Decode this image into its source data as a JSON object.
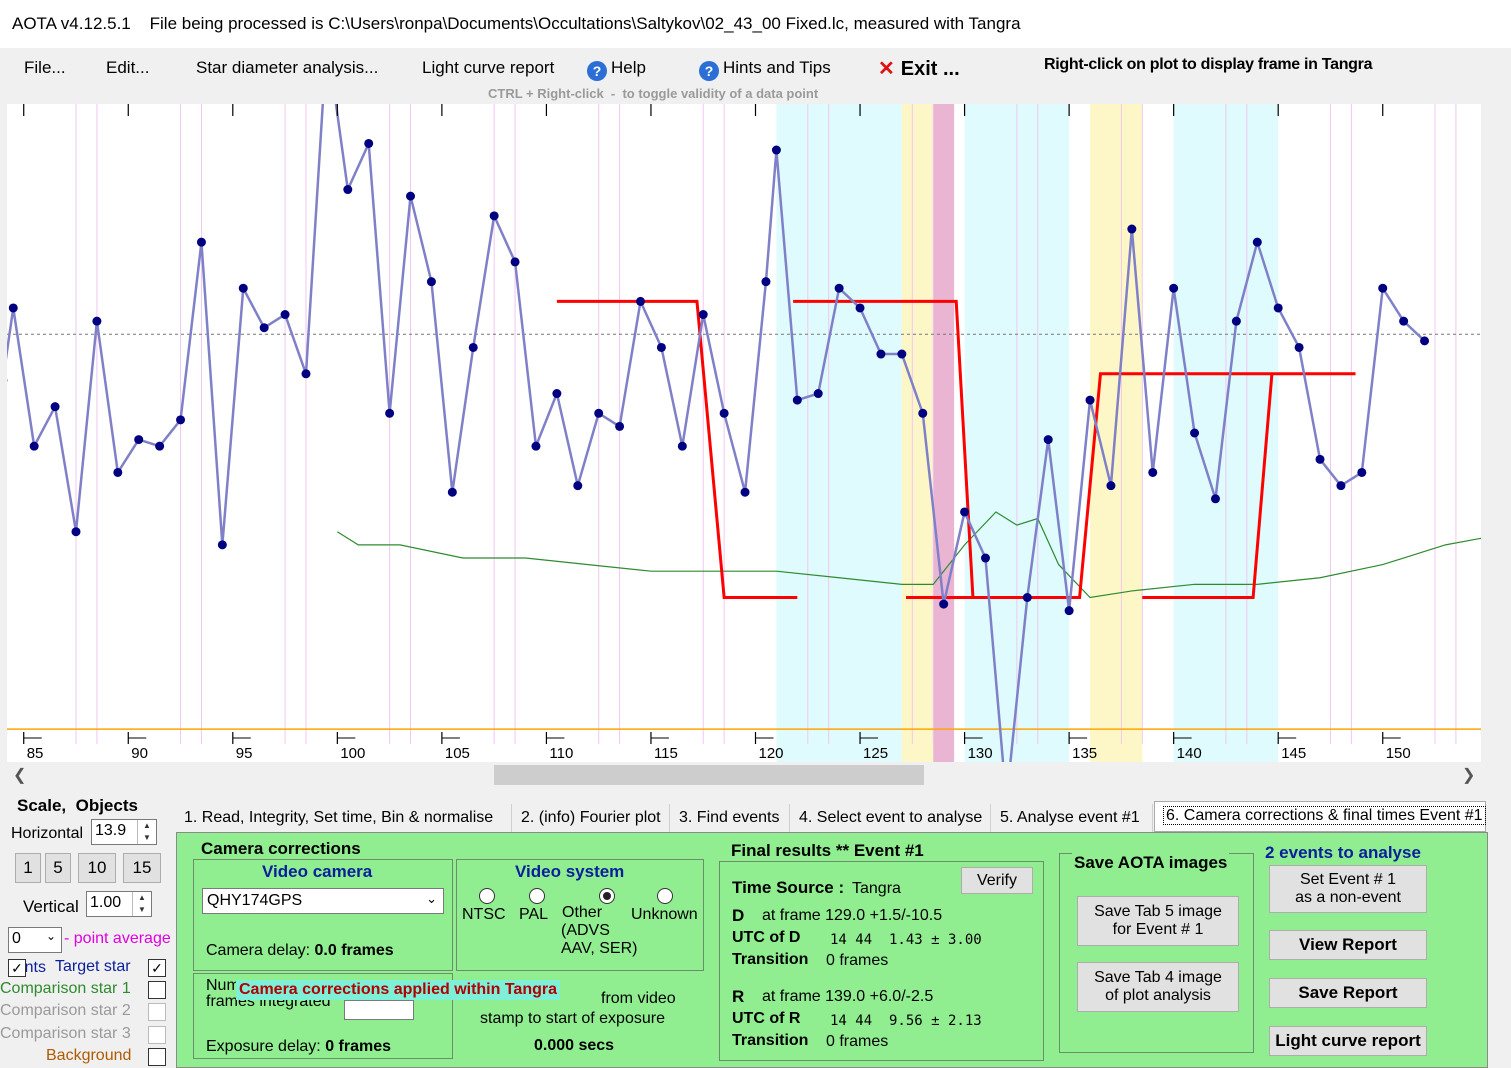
{
  "title": "AOTA v4.12.5.1    File being processed is C:\\Users\\ronpa\\Documents\\Occultations\\Saltykov\\02_43_00 Fixed.lc, measured with Tangra",
  "menu": {
    "file": "File...",
    "edit": "Edit...",
    "star_diameter": "Star diameter analysis...",
    "lc_report": "Light curve report",
    "help": "Help",
    "hints": "Hints and Tips",
    "exit": "Exit ...",
    "right_click_hint": "Right-click on plot to display frame in Tangra",
    "ctrl_hint": "CTRL + Right-click  -  to toggle validity of a data point"
  },
  "colors": {
    "curve": "#8080c8",
    "points": "#000080",
    "model": "#ff0000",
    "comparison": "#2e8b2e",
    "baseline": "#ffa500",
    "band_cyan": "#dffbfd",
    "band_yellow": "#fdf7c8",
    "band_pink": "#eab4d3",
    "panel_green": "#90ee90"
  },
  "chart_data": {
    "type": "line",
    "x_range": [
      84.2,
      154.7
    ],
    "ticks": [
      "85",
      "90",
      "95",
      "100",
      "105",
      "110",
      "115",
      "120",
      "125",
      "130",
      "135",
      "140",
      "145",
      "150"
    ],
    "tick_values": [
      85,
      90,
      95,
      100,
      105,
      110,
      115,
      120,
      125,
      130,
      135,
      140,
      145,
      150
    ],
    "target_star": [
      [
        84,
        0.42
      ],
      [
        84.5,
        0.31
      ],
      [
        85.5,
        0.52
      ],
      [
        86.5,
        0.46
      ],
      [
        87.5,
        0.65
      ],
      [
        88.5,
        0.33
      ],
      [
        89.5,
        0.56
      ],
      [
        90.5,
        0.51
      ],
      [
        91.5,
        0.52
      ],
      [
        92.5,
        0.48
      ],
      [
        93.5,
        0.21
      ],
      [
        94.5,
        0.67
      ],
      [
        95.5,
        0.28
      ],
      [
        96.5,
        0.34
      ],
      [
        97.5,
        0.32
      ],
      [
        98.5,
        0.41
      ],
      [
        99.5,
        -0.1
      ],
      [
        100.5,
        0.13
      ],
      [
        101.5,
        0.06
      ],
      [
        102.5,
        0.47
      ],
      [
        103.5,
        0.14
      ],
      [
        104.5,
        0.27
      ],
      [
        105.5,
        0.59
      ],
      [
        106.5,
        0.37
      ],
      [
        107.5,
        0.17
      ],
      [
        108.5,
        0.24
      ],
      [
        109.5,
        0.52
      ],
      [
        110.5,
        0.44
      ],
      [
        111.5,
        0.58
      ],
      [
        112.5,
        0.47
      ],
      [
        113.5,
        0.49
      ],
      [
        114.5,
        0.3
      ],
      [
        115.5,
        0.37
      ],
      [
        116.5,
        0.52
      ],
      [
        117.5,
        0.32
      ],
      [
        118.5,
        0.47
      ],
      [
        119.5,
        0.59
      ],
      [
        120.5,
        0.27
      ],
      [
        121,
        0.07
      ],
      [
        122,
        0.45
      ],
      [
        123,
        0.44
      ],
      [
        124,
        0.28
      ],
      [
        125,
        0.31
      ],
      [
        126,
        0.38
      ],
      [
        127,
        0.38
      ],
      [
        128,
        0.47
      ],
      [
        129,
        0.76
      ],
      [
        130,
        0.62
      ],
      [
        131,
        0.69
      ],
      [
        132,
        1.06
      ],
      [
        133,
        0.75
      ],
      [
        134,
        0.51
      ],
      [
        135,
        0.77
      ],
      [
        136,
        0.45
      ],
      [
        137,
        0.58
      ],
      [
        138,
        0.19
      ],
      [
        139,
        0.56
      ],
      [
        140,
        0.28
      ],
      [
        141,
        0.5
      ],
      [
        142,
        0.6
      ],
      [
        143,
        0.33
      ],
      [
        144,
        0.21
      ],
      [
        145,
        0.31
      ],
      [
        146,
        0.37
      ],
      [
        147,
        0.54
      ],
      [
        148,
        0.58
      ],
      [
        149,
        0.56
      ],
      [
        150,
        0.28
      ],
      [
        151,
        0.33
      ],
      [
        152,
        0.36
      ]
    ],
    "comparison_star": [
      [
        100,
        0.65
      ],
      [
        101,
        0.67
      ],
      [
        103,
        0.67
      ],
      [
        106,
        0.69
      ],
      [
        109,
        0.69
      ],
      [
        112,
        0.7
      ],
      [
        115,
        0.71
      ],
      [
        118,
        0.71
      ],
      [
        121,
        0.71
      ],
      [
        124,
        0.72
      ],
      [
        127,
        0.73
      ],
      [
        128.5,
        0.73
      ],
      [
        130,
        0.67
      ],
      [
        131.5,
        0.62
      ],
      [
        132.5,
        0.64
      ],
      [
        133.5,
        0.63
      ],
      [
        134.5,
        0.7
      ],
      [
        136,
        0.75
      ],
      [
        138,
        0.74
      ],
      [
        141,
        0.73
      ],
      [
        144,
        0.73
      ],
      [
        147,
        0.72
      ],
      [
        150,
        0.7
      ],
      [
        153,
        0.67
      ],
      [
        154.7,
        0.66
      ]
    ],
    "baseline_normal": 0.35,
    "orange_line": 0.95,
    "model_full_level": 0.4,
    "model_event_level": 0.8,
    "model_R_level": 0.44,
    "event_D_frame": 129.0,
    "event_R_frame": 139.0,
    "bands": {
      "cyan": [
        [
          121,
          127
        ],
        [
          130,
          135
        ],
        [
          140,
          145
        ]
      ],
      "yellow": [
        [
          127,
          128.5
        ],
        [
          136,
          138.5
        ]
      ],
      "pink": [
        [
          128.5,
          129.5
        ]
      ]
    }
  },
  "left": {
    "scale": "Scale,  Objects",
    "horizontal_label": "Horizontal",
    "horizontal_value": "13.9",
    "vertical_label": "Vertical",
    "vertical_value": "1.00",
    "zoom_buttons": [
      "1",
      "5",
      "10",
      "15"
    ],
    "avg_value": "0",
    "avg_label": "- point average",
    "points_label": "Points",
    "target_label": "Target star",
    "comp1": "Comparison star 1",
    "comp2": "Comparison star 2",
    "comp3": "Comparison star 3",
    "background": "Background"
  },
  "tabs": [
    "1.  Read, Integrity, Set time, Bin & normalise",
    "2. (info)  Fourier plot",
    "3. Find events",
    "4. Select event to analyse",
    "5. Analyse event #1",
    "6. Camera corrections & final times Event #1"
  ],
  "camera": {
    "title": "Camera corrections",
    "video_camera": "Video camera",
    "camera_name": "QHY174GPS",
    "camera_delay_label": "Camera delay: ",
    "camera_delay_value": "0.0 frames",
    "video_system": "Video system",
    "options": [
      "NTSC",
      "PAL",
      "Other",
      "Unknown"
    ],
    "other_sub": "(ADVS\nAAV, SER)",
    "num_frames": "Num\nframes integrated",
    "banner": "Camera corrections applied within Tangra",
    "from_video": "from video",
    "stamp": "stamp to start of exposure",
    "secs": "0.000 secs",
    "exposure_label": "Exposure delay: ",
    "exposure_value": "0 frames"
  },
  "final": {
    "title": "Final results  **  Event #1",
    "time_source_label": "Time Source :",
    "time_source": "Tangra",
    "verify": "Verify",
    "D_label": "D",
    "D_frame": "at frame 129.0  +1.5/-10.5",
    "utc_D_label": "UTC of D",
    "utc_D": "14 44  1.43 ± 3.00",
    "transition_label": "Transition",
    "transition_D": "0 frames",
    "R_label": "R",
    "R_frame": "at frame 139.0  +6.0/-2.5",
    "utc_R_label": "UTC of R",
    "utc_R": "14 44  9.56 ± 2.13",
    "transition_R": "0 frames"
  },
  "save": {
    "title": "Save AOTA images",
    "tab5": "Save Tab 5 image\nfor Event # 1",
    "tab4": "Save Tab 4 image\nof plot analysis"
  },
  "events": {
    "title": "2  events to analyse",
    "non_event": "Set Event # 1\nas a non-event",
    "view_report": "View Report",
    "save_report": "Save Report",
    "lc_report": "Light curve report"
  }
}
